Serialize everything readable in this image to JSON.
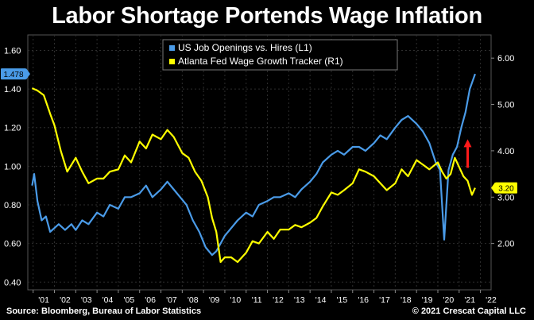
{
  "title": "Labor Shortage Portends Wage Inflation",
  "source": "Source: Bloomberg, Bureau of Labor Statistics",
  "copyright": "© 2021 Crescat Capital LLC",
  "colors": {
    "background": "#000000",
    "series_blue": "#4a9be8",
    "series_yellow": "#ffff00",
    "arrow": "#ff1a1a",
    "grid": "#2e2e2e"
  },
  "chart_data": {
    "type": "line",
    "title": "Labor Shortage Portends Wage Inflation",
    "x_tick_labels": [
      "'01",
      "'02",
      "'03",
      "'04",
      "'05",
      "'06",
      "'07",
      "'08",
      "'09",
      "'10",
      "'11",
      "'12",
      "'13",
      "'14",
      "'15",
      "'16",
      "'17",
      "'18",
      "'19",
      "'20",
      "'21",
      "'22"
    ],
    "x_range": [
      2000.75,
      2022.5
    ],
    "left_axis": {
      "ylim": [
        0.36,
        1.68
      ],
      "ticks": [
        "1.60",
        "1.40",
        "1.20",
        "1.00",
        "0.80",
        "0.60",
        "0.40"
      ],
      "tick_values": [
        1.6,
        1.4,
        1.2,
        1.0,
        0.8,
        0.6,
        0.4
      ]
    },
    "right_axis": {
      "ylim": [
        1.0,
        6.5
      ],
      "ticks": [
        "6.00",
        "5.00",
        "4.00",
        "3.00",
        "2.00"
      ],
      "tick_values": [
        6,
        5,
        4,
        3,
        2
      ]
    },
    "grid": true,
    "legend_placement": "top-center",
    "last_value_labels": [
      {
        "series": "US Job Openings vs. Hires (L1)",
        "text": "1.478",
        "axis": "left"
      },
      {
        "series": "Atlanta Fed Wage Growth Tracker (R1)",
        "text": "3.20",
        "axis": "right"
      }
    ],
    "annotations": [
      {
        "type": "arrow-up",
        "x": 2021.4,
        "y_left": 1.0,
        "color": "#ff1a1a"
      }
    ],
    "series": [
      {
        "name": "US Job Openings vs. Hires (L1)",
        "axis": "left",
        "color": "#4a9be8",
        "x": [
          2000.95,
          2001.05,
          2001.2,
          2001.4,
          2001.6,
          2001.8,
          2002.0,
          2002.2,
          2002.5,
          2002.8,
          2003.0,
          2003.3,
          2003.6,
          2004.0,
          2004.3,
          2004.6,
          2005.0,
          2005.3,
          2005.6,
          2006.0,
          2006.3,
          2006.6,
          2007.0,
          2007.3,
          2007.6,
          2007.9,
          2008.2,
          2008.5,
          2008.8,
          2009.1,
          2009.4,
          2009.6,
          2009.8,
          2010.0,
          2010.3,
          2010.6,
          2011.0,
          2011.3,
          2011.6,
          2012.0,
          2012.3,
          2012.6,
          2013.0,
          2013.3,
          2013.6,
          2014.0,
          2014.3,
          2014.6,
          2015.0,
          2015.3,
          2015.6,
          2016.0,
          2016.3,
          2016.6,
          2017.0,
          2017.3,
          2017.6,
          2018.0,
          2018.3,
          2018.6,
          2019.0,
          2019.3,
          2019.6,
          2019.9,
          2020.1,
          2020.3,
          2020.5,
          2020.7,
          2020.9,
          2021.1,
          2021.3,
          2021.5,
          2021.75
        ],
        "y": [
          0.9,
          0.96,
          0.82,
          0.72,
          0.74,
          0.66,
          0.68,
          0.7,
          0.67,
          0.7,
          0.67,
          0.72,
          0.7,
          0.76,
          0.74,
          0.8,
          0.78,
          0.84,
          0.84,
          0.86,
          0.9,
          0.84,
          0.88,
          0.92,
          0.88,
          0.84,
          0.8,
          0.72,
          0.66,
          0.58,
          0.54,
          0.56,
          0.6,
          0.64,
          0.68,
          0.72,
          0.76,
          0.74,
          0.8,
          0.82,
          0.84,
          0.84,
          0.86,
          0.84,
          0.88,
          0.92,
          0.96,
          1.02,
          1.06,
          1.08,
          1.06,
          1.1,
          1.1,
          1.08,
          1.12,
          1.16,
          1.14,
          1.2,
          1.24,
          1.26,
          1.22,
          1.18,
          1.12,
          1.02,
          0.98,
          0.62,
          0.98,
          1.06,
          1.1,
          1.2,
          1.28,
          1.4,
          1.478
        ]
      },
      {
        "name": "Atlanta Fed Wage Growth Tracker (R1)",
        "axis": "right",
        "color": "#ffff00",
        "x": [
          2000.95,
          2001.2,
          2001.5,
          2001.8,
          2002.0,
          2002.3,
          2002.6,
          2003.0,
          2003.3,
          2003.6,
          2004.0,
          2004.3,
          2004.6,
          2005.0,
          2005.3,
          2005.6,
          2006.0,
          2006.3,
          2006.6,
          2007.0,
          2007.3,
          2007.6,
          2008.0,
          2008.3,
          2008.6,
          2008.9,
          2009.2,
          2009.4,
          2009.6,
          2009.8,
          2010.0,
          2010.3,
          2010.6,
          2011.0,
          2011.3,
          2011.6,
          2012.0,
          2012.3,
          2012.6,
          2013.0,
          2013.3,
          2013.6,
          2014.0,
          2014.3,
          2014.6,
          2015.0,
          2015.3,
          2015.6,
          2016.0,
          2016.3,
          2016.6,
          2017.0,
          2017.3,
          2017.6,
          2018.0,
          2018.3,
          2018.6,
          2019.0,
          2019.3,
          2019.6,
          2020.0,
          2020.2,
          2020.4,
          2020.6,
          2020.8,
          2021.0,
          2021.2,
          2021.4,
          2021.6,
          2021.75
        ],
        "y": [
          5.35,
          5.3,
          5.2,
          4.8,
          4.55,
          4.0,
          3.55,
          3.85,
          3.55,
          3.3,
          3.4,
          3.4,
          3.55,
          3.6,
          3.9,
          3.75,
          4.2,
          4.05,
          4.35,
          4.25,
          4.45,
          4.3,
          3.95,
          3.85,
          3.55,
          3.35,
          3.0,
          2.55,
          2.25,
          1.6,
          1.7,
          1.7,
          1.6,
          1.8,
          2.05,
          2.0,
          2.25,
          2.1,
          2.3,
          2.3,
          2.4,
          2.35,
          2.45,
          2.55,
          2.8,
          3.1,
          3.05,
          3.15,
          3.3,
          3.6,
          3.55,
          3.45,
          3.3,
          3.15,
          3.3,
          3.6,
          3.45,
          3.8,
          3.7,
          3.6,
          3.75,
          3.55,
          3.4,
          3.5,
          3.85,
          3.65,
          3.45,
          3.35,
          3.05,
          3.2
        ]
      }
    ]
  }
}
